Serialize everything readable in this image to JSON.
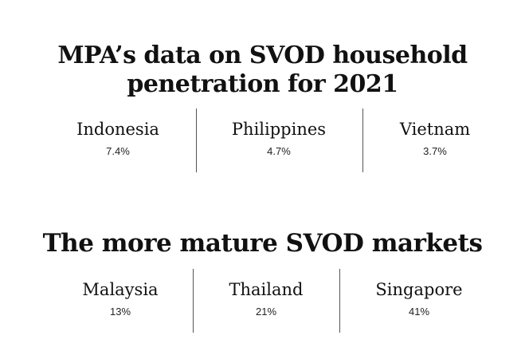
{
  "chart_data": [
    {
      "type": "table",
      "title": "MPA’s data on SVOD household penetration for 2021",
      "categories": [
        "Indonesia",
        "Philippines",
        "Vietnam"
      ],
      "values": [
        "7.4%",
        "4.7%",
        "3.7%"
      ]
    },
    {
      "type": "table",
      "title": "The more mature SVOD markets",
      "categories": [
        "Malaysia",
        "Thailand",
        "Singapore"
      ],
      "values": [
        "13%",
        "21%",
        "41%"
      ]
    }
  ]
}
